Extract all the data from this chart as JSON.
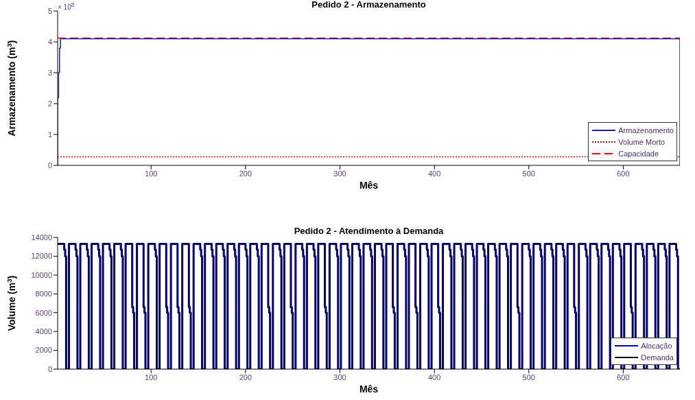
{
  "chart_data": [
    {
      "type": "line",
      "title": "Pedido 2 - Armazenamento",
      "xlabel": "Mês",
      "ylabel": "Armazenamento (m$^{3}$)",
      "annotations": [
        "× 10$^{8}$"
      ],
      "xlim": [
        1,
        660
      ],
      "xticks": [
        100,
        200,
        300,
        400,
        500,
        600
      ],
      "ylim": [
        0,
        5
      ],
      "yticks": [
        0,
        1,
        2,
        3,
        4,
        5
      ],
      "legend": "bottom right",
      "series": [
        {
          "name": "Armazenamento",
          "type": "step",
          "color": "#1c1ca0",
          "x": [
            1,
            1,
            2,
            3,
            4,
            5,
            100,
            200,
            300,
            400,
            500,
            600,
            659,
            660
          ],
          "values": [
            0,
            2.2,
            3.0,
            3.8,
            4.1,
            4.1,
            4.1,
            4.1,
            4.1,
            4.1,
            4.1,
            4.1,
            4.1,
            0
          ]
        },
        {
          "name": "Volume Morto",
          "color": "#ff0000",
          "line_style": "dotted",
          "x": [
            1,
            660
          ],
          "values": [
            0.28,
            0.28
          ]
        },
        {
          "name": "Capacidade",
          "color": "#ff0000",
          "line_style": "dashed",
          "x": [
            1,
            660
          ],
          "values": [
            4.12,
            4.12
          ]
        }
      ]
    },
    {
      "type": "step",
      "title": "Pedido 2 - Atendimento à Demanda",
      "xlabel": "Mês",
      "ylabel": "Volume (m$^{3}$)",
      "xlim": [
        1,
        660
      ],
      "xticks": [
        100,
        200,
        300,
        400,
        500,
        600
      ],
      "ylim": [
        0,
        14000
      ],
      "yticks": [
        0,
        2000,
        4000,
        6000,
        8000,
        10000,
        12000,
        14000
      ],
      "legend": "bottom right",
      "x": [
        1,
        8,
        9,
        10,
        13,
        20,
        21,
        22,
        25,
        32,
        33,
        34,
        37,
        44,
        45,
        46,
        49,
        56,
        57,
        58,
        61,
        68,
        69,
        70,
        73,
        80,
        81,
        82,
        85,
        92,
        93,
        94,
        97,
        104,
        105,
        106,
        109,
        116,
        117,
        118,
        121,
        128,
        129,
        130,
        133,
        140,
        141,
        142,
        145,
        152,
        153,
        154,
        157,
        164,
        165,
        166,
        169,
        176,
        177,
        178,
        181,
        188,
        189,
        190,
        193,
        200,
        201,
        202,
        205,
        212,
        213,
        214,
        217,
        224,
        225,
        226,
        229,
        236,
        237,
        238,
        241,
        248,
        249,
        250,
        253,
        260,
        261,
        262,
        265,
        272,
        273,
        274,
        277,
        284,
        285,
        286,
        289,
        296,
        297,
        298,
        301,
        308,
        309,
        310,
        313,
        320,
        321,
        322,
        325,
        332,
        333,
        334,
        337,
        344,
        345,
        346,
        349,
        356,
        357,
        358,
        361,
        368,
        369,
        370,
        373,
        380,
        381,
        382,
        385,
        392,
        393,
        394,
        397,
        404,
        405,
        406,
        409,
        416,
        417,
        418,
        421,
        428,
        429,
        430,
        433,
        440,
        441,
        442,
        445,
        452,
        453,
        454,
        457,
        464,
        465,
        466,
        469,
        476,
        477,
        478,
        481,
        488,
        489,
        490,
        493,
        500,
        501,
        502,
        505,
        512,
        513,
        514,
        517,
        524,
        525,
        526,
        529,
        536,
        537,
        538,
        541,
        548,
        549,
        550,
        553,
        560,
        561,
        562,
        565,
        572,
        573,
        574,
        577,
        584,
        585,
        586,
        589,
        596,
        597,
        598,
        601,
        608,
        609,
        610,
        613,
        620,
        621,
        622,
        625,
        632,
        633,
        634,
        637,
        644,
        645,
        646,
        649,
        656,
        657,
        658,
        660
      ],
      "series": [
        {
          "name": "Alocação",
          "color": "#0000cc",
          "values": [
            13300,
            12700,
            12000,
            0,
            13300,
            12700,
            12000,
            0,
            13300,
            12700,
            12000,
            0,
            13300,
            12700,
            12000,
            0,
            13300,
            12700,
            12000,
            0,
            13300,
            12700,
            12000,
            0,
            13300,
            6600,
            6000,
            0,
            13300,
            6600,
            6000,
            0,
            13300,
            12700,
            12000,
            0,
            13300,
            6600,
            6000,
            0,
            13300,
            6600,
            6000,
            0,
            13300,
            6600,
            6000,
            0,
            13300,
            12700,
            12000,
            0,
            13300,
            12700,
            12000,
            0,
            13300,
            12700,
            12000,
            0,
            13300,
            12700,
            12000,
            0,
            13300,
            12700,
            12000,
            0,
            13300,
            12700,
            12000,
            0,
            13300,
            6600,
            6000,
            0,
            13300,
            12700,
            12000,
            0,
            13300,
            6600,
            6000,
            0,
            13300,
            12700,
            12000,
            0,
            13300,
            12700,
            12000,
            0,
            13300,
            6600,
            6000,
            0,
            13300,
            12700,
            12000,
            0,
            13300,
            12700,
            12000,
            0,
            13300,
            12700,
            12000,
            0,
            13300,
            12700,
            12000,
            0,
            13300,
            12700,
            12000,
            0,
            13300,
            6600,
            6000,
            0,
            13300,
            12700,
            12000,
            0,
            13300,
            6600,
            6000,
            0,
            13300,
            12700,
            12000,
            0,
            13300,
            6600,
            6000,
            0,
            13300,
            12700,
            12000,
            0,
            13300,
            12700,
            12000,
            0,
            13300,
            12700,
            12000,
            0,
            13300,
            12700,
            12000,
            0,
            13300,
            12700,
            12000,
            0,
            13300,
            12700,
            12000,
            0,
            13300,
            6600,
            6000,
            0,
            13300,
            12700,
            12000,
            0,
            13300,
            12700,
            12000,
            0,
            13300,
            12700,
            12000,
            0,
            13300,
            12700,
            12000,
            0,
            13300,
            6600,
            6000,
            0,
            13300,
            12700,
            12000,
            0,
            13300,
            12700,
            12000,
            0,
            13300,
            12700,
            12000,
            0,
            13300,
            12700,
            12000,
            0,
            13300,
            6600,
            6000,
            0,
            13300,
            12700,
            12000,
            0,
            13300,
            12700,
            12000,
            0,
            13300,
            12700,
            12000,
            0,
            13300,
            12700,
            12000,
            0,
            0
          ]
        },
        {
          "name": "Demanda",
          "color": "#000000",
          "values": [
            13300,
            12700,
            12000,
            0,
            13300,
            12700,
            12000,
            0,
            13300,
            12700,
            12000,
            0,
            13300,
            12700,
            12000,
            0,
            13300,
            12700,
            12000,
            0,
            13300,
            12700,
            12000,
            0,
            13300,
            6600,
            6000,
            0,
            13300,
            6600,
            6000,
            0,
            13300,
            12700,
            12000,
            0,
            13300,
            6600,
            6000,
            0,
            13300,
            6600,
            6000,
            0,
            13300,
            6600,
            6000,
            0,
            13300,
            12700,
            12000,
            0,
            13300,
            12700,
            12000,
            0,
            13300,
            12700,
            12000,
            0,
            13300,
            12700,
            12000,
            0,
            13300,
            12700,
            12000,
            0,
            13300,
            12700,
            12000,
            0,
            13300,
            6600,
            6000,
            0,
            13300,
            12700,
            12000,
            0,
            13300,
            6600,
            6000,
            0,
            13300,
            12700,
            12000,
            0,
            13300,
            12700,
            12000,
            0,
            13300,
            6600,
            6000,
            0,
            13300,
            12700,
            12000,
            0,
            13300,
            12700,
            12000,
            0,
            13300,
            12700,
            12000,
            0,
            13300,
            12700,
            12000,
            0,
            13300,
            12700,
            12000,
            0,
            13300,
            6600,
            6000,
            0,
            13300,
            12700,
            12000,
            0,
            13300,
            6600,
            6000,
            0,
            13300,
            12700,
            12000,
            0,
            13300,
            6600,
            6000,
            0,
            13300,
            12700,
            12000,
            0,
            13300,
            12700,
            12000,
            0,
            13300,
            12700,
            12000,
            0,
            13300,
            12700,
            12000,
            0,
            13300,
            12700,
            12000,
            0,
            13300,
            12700,
            12000,
            0,
            13300,
            6600,
            6000,
            0,
            13300,
            12700,
            12000,
            0,
            13300,
            12700,
            12000,
            0,
            13300,
            12700,
            12000,
            0,
            13300,
            12700,
            12000,
            0,
            13300,
            6600,
            6000,
            0,
            13300,
            12700,
            12000,
            0,
            13300,
            12700,
            12000,
            0,
            13300,
            12700,
            12000,
            0,
            13300,
            12700,
            12000,
            0,
            13300,
            6600,
            6000,
            0,
            13300,
            12700,
            12000,
            0,
            13300,
            12700,
            12000,
            0,
            13300,
            12700,
            12000,
            0,
            13300,
            12700,
            12000,
            0,
            0
          ]
        }
      ]
    }
  ]
}
